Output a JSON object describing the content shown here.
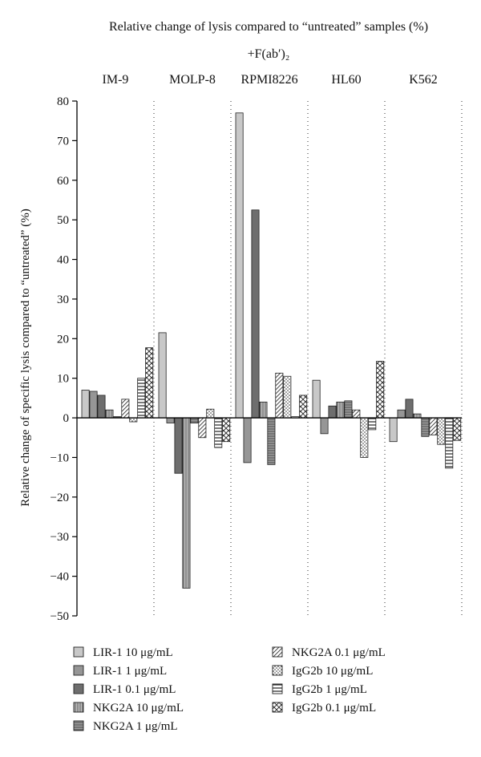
{
  "chart_data": {
    "type": "bar",
    "title": "Relative change of lysis compared to “untreated” samples (%)",
    "subtitle": "+F(ab′)₂",
    "ylabel": "Relative change of specific lysis compared to “untreated” (%)",
    "xlabel": "",
    "ylim": [
      -50,
      80
    ],
    "yticks": [
      80,
      70,
      60,
      50,
      40,
      30,
      20,
      10,
      0,
      -10,
      -20,
      -30,
      -40,
      -50
    ],
    "ytick_labels": [
      "80",
      "70",
      "60",
      "50",
      "40",
      "30",
      "20",
      "10",
      "0",
      "−10",
      "−20",
      "−30",
      "−40",
      "−50"
    ],
    "grid": false,
    "legend_position": "bottom",
    "categories": [
      "IM-9",
      "MOLP-8",
      "RPMI8226",
      "HL60",
      "K562"
    ],
    "series": [
      {
        "name": "LIR-1 10 μg/mL",
        "fill": "#c8c8c8",
        "pattern": "solid",
        "values": [
          7,
          21.5,
          77,
          9.5,
          -6
        ]
      },
      {
        "name": "LIR-1 1 μg/mL",
        "fill": "#969696",
        "pattern": "solid",
        "values": [
          6.7,
          -1.3,
          -11.3,
          -4,
          2
        ]
      },
      {
        "name": "LIR-1 0.1 μg/mL",
        "fill": "#6e6e6e",
        "pattern": "solid",
        "values": [
          5.7,
          -14,
          52.5,
          3,
          4.7
        ]
      },
      {
        "name": "NKG2A 10 μg/mL",
        "fill": "#a6a6a6",
        "pattern": "vlines",
        "values": [
          2,
          -43,
          4,
          4,
          1
        ]
      },
      {
        "name": "NKG2A 1 μg/mL",
        "fill": "#8c8c8c",
        "pattern": "hlines",
        "values": [
          0.3,
          -1.3,
          -11.8,
          4.3,
          -4.7
        ]
      },
      {
        "name": "NKG2A 0.1 μg/mL",
        "fill": "#ffffff",
        "pattern": "diag",
        "values": [
          4.7,
          -5,
          11.3,
          2,
          -4.3
        ]
      },
      {
        "name": "IgG2b 10 μg/mL",
        "fill": "#ffffff",
        "pattern": "dots",
        "values": [
          -1,
          2.2,
          10.5,
          -10,
          -6.7
        ]
      },
      {
        "name": "IgG2b 1 μg/mL",
        "fill": "#ffffff",
        "pattern": "hstripes",
        "values": [
          10,
          -7.5,
          0.3,
          -3,
          -12.7
        ]
      },
      {
        "name": "IgG2b 0.1 μg/mL",
        "fill": "#ffffff",
        "pattern": "crosshatch",
        "values": [
          17.7,
          -6,
          5.7,
          14.3,
          -5.7
        ]
      }
    ]
  }
}
